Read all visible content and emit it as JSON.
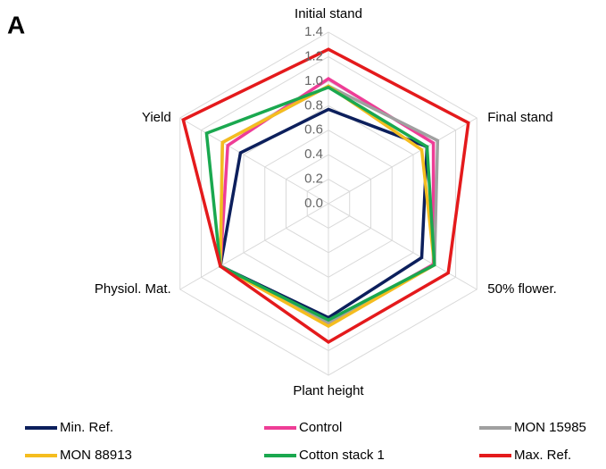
{
  "chart_data": {
    "type": "radar",
    "panel_label": "A",
    "categories": [
      "Initial stand",
      "Final stand",
      "50% flower.",
      "Plant height",
      "Physiol. Mat.",
      "Yield"
    ],
    "ylim": [
      0,
      1.4
    ],
    "yticks": [
      {
        "value": 0,
        "label": "0.0"
      },
      0.2,
      0.4,
      0.6,
      0.8,
      {
        "value": 1,
        "label": "1.0"
      },
      1.2,
      1.4
    ],
    "grid": true,
    "legend": "bottom",
    "series": [
      {
        "name": "Min. Ref.",
        "color": "#0c1f5c",
        "values": [
          0.77,
          0.93,
          0.88,
          0.93,
          1.02,
          0.83
        ]
      },
      {
        "name": "Control",
        "color": "#ee3d96",
        "values": [
          1.02,
          0.99,
          0.99,
          0.98,
          1.02,
          0.95
        ]
      },
      {
        "name": "MON 15985",
        "color": "#a0a0a0",
        "values": [
          0.96,
          1.03,
          1.0,
          0.98,
          1.02,
          1.0
        ]
      },
      {
        "name": "MON 88913",
        "color": "#f5bd1f",
        "values": [
          0.96,
          0.88,
          1.0,
          1.0,
          1.02,
          1.0
        ]
      },
      {
        "name": "Cotton stack 1",
        "color": "#1aa84f",
        "values": [
          0.95,
          0.93,
          1.0,
          0.95,
          1.02,
          1.15
        ]
      },
      {
        "name": "Max. Ref.",
        "color": "#e41a1c",
        "values": [
          1.26,
          1.32,
          1.13,
          1.13,
          1.02,
          1.37
        ]
      }
    ]
  }
}
